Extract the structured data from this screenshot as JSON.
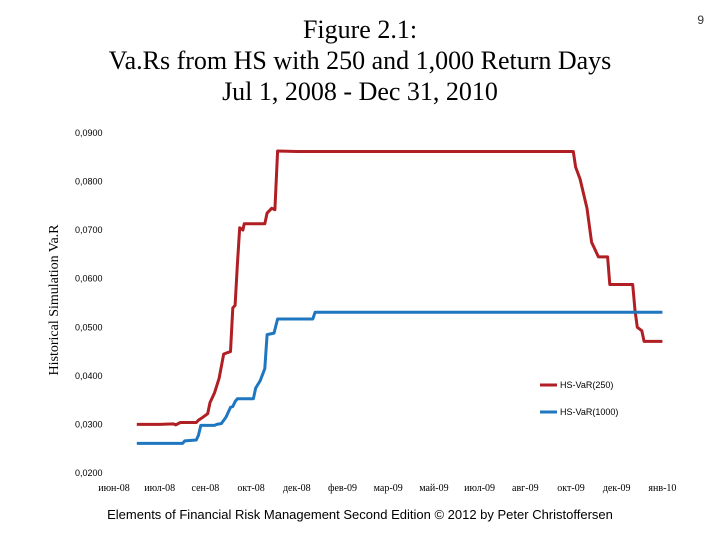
{
  "slide_number": "9",
  "title_lines": [
    "Figure 2.1:",
    "Va.Rs from HS with 250 and 1,000 Return Days",
    "Jul 1, 2008 - Dec 31, 2010"
  ],
  "footer": "Elements of Financial Risk Management Second Edition © 2012  by Peter Christoffersen",
  "chart_data": {
    "type": "line",
    "ylabel": "Historical Simulation Va.R",
    "xlabel": "",
    "ylim": [
      0.02,
      0.09
    ],
    "y_ticks": [
      "0,0900",
      "0,0800",
      "0,0700",
      "0,0600",
      "0,0500",
      "0,0400",
      "0,0300",
      "0,0200"
    ],
    "x_ticks": [
      "июн-08",
      "июл-08",
      "сен-08",
      "окт-08",
      "дек-08",
      "фев-09",
      "мар-09",
      "май-09",
      "июл-09",
      "авг-09",
      "окт-09",
      "дек-09",
      "янв-10"
    ],
    "grid": false,
    "legend_position": "right",
    "series": [
      {
        "name": "HS-VaR(250)",
        "color": "#b01f24",
        "points": [
          [
            0.5,
            0.03
          ],
          [
            1.0,
            0.03
          ],
          [
            1.3,
            0.0301
          ],
          [
            1.35,
            0.0299
          ],
          [
            1.45,
            0.0304
          ],
          [
            1.8,
            0.0304
          ],
          [
            1.85,
            0.0309
          ],
          [
            1.95,
            0.0315
          ],
          [
            2.05,
            0.0322
          ],
          [
            2.1,
            0.0345
          ],
          [
            2.2,
            0.0365
          ],
          [
            2.3,
            0.0395
          ],
          [
            2.4,
            0.0445
          ],
          [
            2.55,
            0.045
          ],
          [
            2.6,
            0.054
          ],
          [
            2.65,
            0.0545
          ],
          [
            2.7,
            0.063
          ],
          [
            2.75,
            0.0705
          ],
          [
            2.82,
            0.07
          ],
          [
            2.85,
            0.0713
          ],
          [
            3.3,
            0.0713
          ],
          [
            3.35,
            0.0735
          ],
          [
            3.45,
            0.0745
          ],
          [
            3.52,
            0.0742
          ],
          [
            3.58,
            0.0863
          ],
          [
            4.0,
            0.0862
          ],
          [
            10.05,
            0.0862
          ],
          [
            10.1,
            0.083
          ],
          [
            10.2,
            0.0805
          ],
          [
            10.35,
            0.0745
          ],
          [
            10.45,
            0.0675
          ],
          [
            10.5,
            0.0665
          ],
          [
            10.6,
            0.0645
          ],
          [
            10.8,
            0.0645
          ],
          [
            10.85,
            0.0588
          ],
          [
            11.35,
            0.0588
          ],
          [
            11.4,
            0.0535
          ],
          [
            11.45,
            0.05
          ],
          [
            11.55,
            0.0493
          ],
          [
            11.6,
            0.0471
          ],
          [
            12.0,
            0.0471
          ]
        ]
      },
      {
        "name": "HS-VaR(1000)",
        "color": "#1f77c0",
        "points": [
          [
            0.5,
            0.0261
          ],
          [
            1.5,
            0.0261
          ],
          [
            1.55,
            0.0266
          ],
          [
            1.8,
            0.0268
          ],
          [
            1.85,
            0.0278
          ],
          [
            1.9,
            0.0298
          ],
          [
            2.2,
            0.0298
          ],
          [
            2.25,
            0.03
          ],
          [
            2.35,
            0.0302
          ],
          [
            2.45,
            0.0315
          ],
          [
            2.55,
            0.0335
          ],
          [
            2.6,
            0.0337
          ],
          [
            2.65,
            0.0347
          ],
          [
            2.7,
            0.0353
          ],
          [
            3.05,
            0.0353
          ],
          [
            3.1,
            0.0375
          ],
          [
            3.2,
            0.039
          ],
          [
            3.3,
            0.0415
          ],
          [
            3.35,
            0.0485
          ],
          [
            3.5,
            0.0488
          ],
          [
            3.58,
            0.0517
          ],
          [
            4.35,
            0.0517
          ],
          [
            4.4,
            0.0531
          ],
          [
            12.0,
            0.0531
          ]
        ]
      }
    ]
  }
}
